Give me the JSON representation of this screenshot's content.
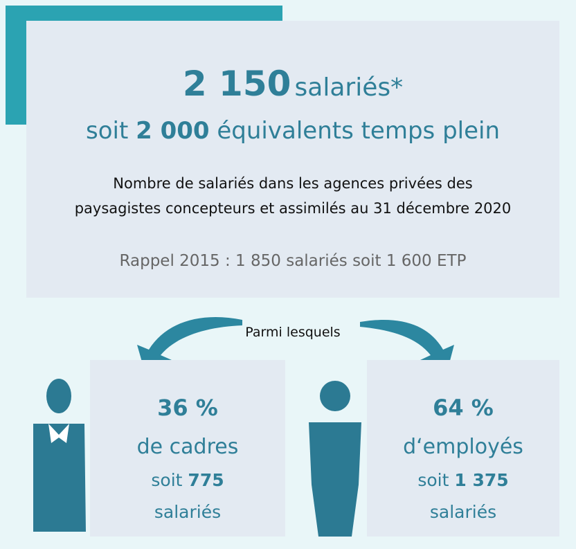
{
  "header": {
    "count": "2 150",
    "count_unit": "salariés*",
    "fte_prefix": "soit",
    "fte": "2 000",
    "fte_unit": "équivalents temps plein"
  },
  "description": [
    "Nombre de salariés dans les agences privées des",
    "paysagistes concepteurs et assimilés au 31 décembre 2020"
  ],
  "reminder": "Rappel 2015 : 1 850 salariés soit 1 600 ETP",
  "divider": "Parmi lesquels",
  "groups": [
    {
      "share": "36 %",
      "label": "de cadres",
      "count_prefix": "soit",
      "count": "775",
      "count_unit": "salariés"
    },
    {
      "share": "64 %",
      "label": "d‘employés",
      "count_prefix": "soit",
      "count": "1 375",
      "count_unit": "salariés"
    }
  ]
}
